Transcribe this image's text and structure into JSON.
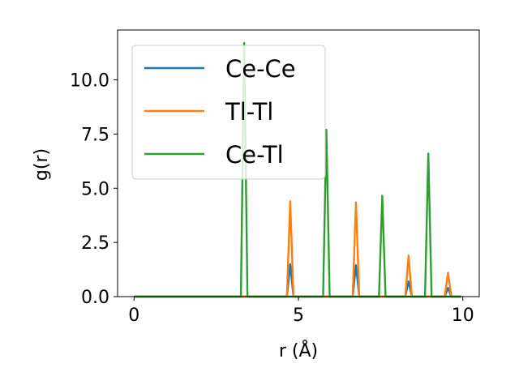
{
  "chart_data": {
    "type": "line",
    "xlabel": "r (Å)",
    "ylabel": "g(r)",
    "xlim": [
      -0.5,
      10.5
    ],
    "ylim": [
      0,
      12.3
    ],
    "xticks": [
      0,
      5,
      10
    ],
    "xtick_labels": [
      "0",
      "5",
      "10"
    ],
    "yticks": [
      0.0,
      2.5,
      5.0,
      7.5,
      10.0
    ],
    "ytick_labels": [
      "0.0",
      "2.5",
      "5.0",
      "7.5",
      "10.0"
    ],
    "grid": false,
    "legend_position": "top-left",
    "series": [
      {
        "name": "Ce-Ce",
        "color": "#1f77b4",
        "x": [
          0.0,
          4.65,
          4.75,
          4.85,
          6.65,
          6.75,
          6.85,
          8.25,
          8.35,
          8.45,
          9.45,
          9.55,
          9.65,
          9.95
        ],
        "y": [
          0.0,
          0.0,
          1.5,
          0.0,
          0.0,
          1.45,
          0.0,
          0.0,
          0.7,
          0.0,
          0.0,
          0.4,
          0.0,
          0.0
        ]
      },
      {
        "name": "Tl-Tl",
        "color": "#ff7f0e",
        "x": [
          0.0,
          4.65,
          4.75,
          4.85,
          6.65,
          6.75,
          6.85,
          8.25,
          8.35,
          8.45,
          9.45,
          9.55,
          9.65,
          9.95
        ],
        "y": [
          0.0,
          0.0,
          4.4,
          0.0,
          0.0,
          4.35,
          0.0,
          0.0,
          1.9,
          0.0,
          0.0,
          1.1,
          0.0,
          0.0
        ]
      },
      {
        "name": "Ce-Tl",
        "color": "#2ca02c",
        "x": [
          0.0,
          3.25,
          3.35,
          3.45,
          5.75,
          5.85,
          5.95,
          7.45,
          7.55,
          7.65,
          8.85,
          8.95,
          9.05,
          9.95
        ],
        "y": [
          0.0,
          0.0,
          11.7,
          0.0,
          0.0,
          7.7,
          0.0,
          0.0,
          4.65,
          0.0,
          0.0,
          6.6,
          0.0,
          0.0
        ]
      }
    ]
  }
}
